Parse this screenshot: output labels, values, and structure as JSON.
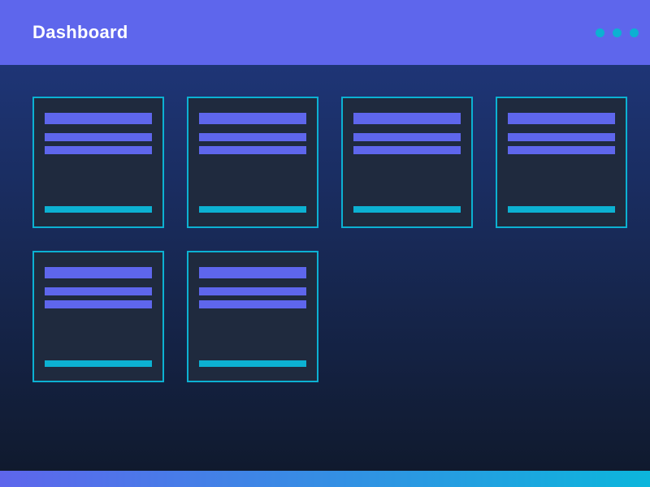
{
  "header": {
    "title": "Dashboard",
    "dots": [
      {
        "name": "header-dot-icon"
      },
      {
        "name": "header-dot-icon"
      },
      {
        "name": "header-dot-icon"
      }
    ]
  },
  "cards": [
    {
      "title_placeholder": 1,
      "text_placeholders": 2,
      "action_placeholder": 1
    },
    {
      "title_placeholder": 1,
      "text_placeholders": 2,
      "action_placeholder": 1
    },
    {
      "title_placeholder": 1,
      "text_placeholders": 2,
      "action_placeholder": 1
    },
    {
      "title_placeholder": 1,
      "text_placeholders": 2,
      "action_placeholder": 1
    },
    {
      "title_placeholder": 1,
      "text_placeholders": 2,
      "action_placeholder": 1
    },
    {
      "title_placeholder": 1,
      "text_placeholders": 2,
      "action_placeholder": 1
    }
  ],
  "colors": {
    "primary": "#5E66EC",
    "accent": "#0CB1D2",
    "header-bg": "#5E66EC",
    "card-bg": "#1F2A3E",
    "bg-top": "#1E3576",
    "bg-bottom": "#101A2E",
    "gradient-end": "#0CB6DC"
  }
}
